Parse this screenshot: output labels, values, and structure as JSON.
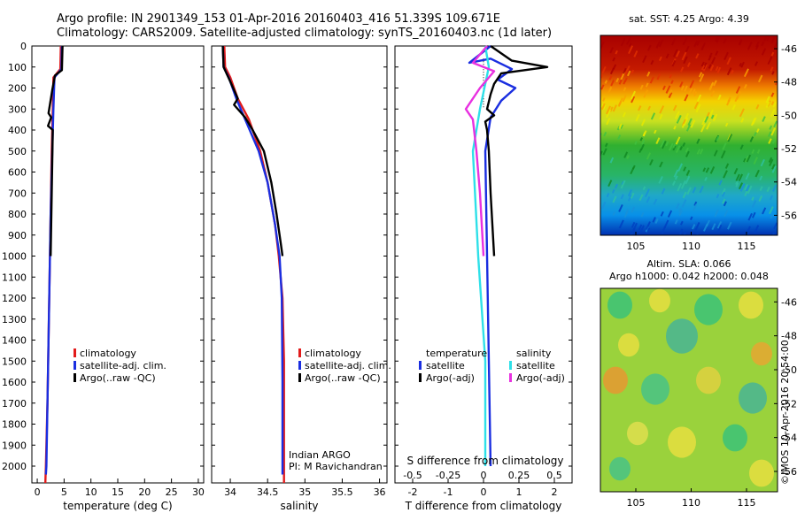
{
  "header": {
    "line1": "Argo profile: IN 2901349_153 01-Apr-2016 20160403_416 51.339S 109.671E",
    "line2": "Climatology: CARS2009. Satellite-adjusted climatology: synTS_20160403.nc (1d later)"
  },
  "credit": "©IMOS 10-Apr-2016 20:54:00",
  "colors": {
    "clim": "#e21b1b",
    "sat": "#1a2ee0",
    "argo": "#000000",
    "sal_sat": "#2ee0e8",
    "sal_argo": "#e830e0"
  },
  "chart_data": [
    {
      "type": "line",
      "id": "temperature",
      "xlabel": "temperature (deg C)",
      "ylabel": "",
      "xlim": [
        -1,
        31
      ],
      "ylim": [
        2080,
        0
      ],
      "xticks": [
        "0",
        "5",
        "10",
        "15",
        "20",
        "25",
        "30"
      ],
      "yticks": [
        "0",
        "100",
        "200",
        "300",
        "400",
        "500",
        "600",
        "700",
        "800",
        "900",
        "1000",
        "1100",
        "1200",
        "1300",
        "1400",
        "1500",
        "1600",
        "1700",
        "1800",
        "1900",
        "2000"
      ],
      "legend": [
        "climatology",
        "satellite-adj. clim.",
        "Argo(..raw -QC)"
      ],
      "series": [
        {
          "name": "climatology",
          "color_key": "clim",
          "x": [
            4.4,
            4.3,
            3.0,
            2.9,
            2.7,
            2.5,
            2.3,
            2.1,
            1.9,
            1.6,
            1.5
          ],
          "y": [
            0,
            110,
            150,
            300,
            500,
            800,
            1100,
            1400,
            1700,
            2000,
            2080
          ]
        },
        {
          "name": "satellite-adj. clim.",
          "color_key": "sat",
          "x": [
            4.6,
            4.5,
            3.2,
            3.0,
            2.8,
            2.5,
            2.3,
            2.1,
            1.9,
            1.7,
            1.6
          ],
          "y": [
            0,
            110,
            150,
            300,
            500,
            800,
            1100,
            1400,
            1700,
            2000,
            2040
          ]
        },
        {
          "name": "Argo(..raw -QC)",
          "color_key": "argo",
          "x": [
            4.7,
            4.6,
            3.3,
            2.8,
            2.1,
            2.6,
            2.0,
            2.9,
            2.7,
            2.5
          ],
          "y": [
            0,
            115,
            140,
            210,
            320,
            340,
            380,
            400,
            700,
            1000
          ]
        }
      ]
    },
    {
      "type": "line",
      "id": "salinity",
      "xlabel": "salinity",
      "ylabel": "",
      "xlim": [
        33.75,
        36.1
      ],
      "ylim": [
        2080,
        0
      ],
      "xticks": [
        "34",
        "34.5",
        "35",
        "35.5",
        "36"
      ],
      "legend": [
        "climatology",
        "satellite-adj. clim.",
        "Argo(..raw -QC)"
      ],
      "annotation": [
        "Indian ARGO",
        "PI: M Ravichandran"
      ],
      "series": [
        {
          "name": "climatology",
          "color_key": "clim",
          "x": [
            33.92,
            33.93,
            34.0,
            34.1,
            34.25,
            34.4,
            34.5,
            34.6,
            34.65,
            34.7,
            34.72,
            34.72,
            34.72
          ],
          "y": [
            0,
            100,
            150,
            250,
            350,
            500,
            650,
            850,
            1000,
            1200,
            1500,
            2000,
            2080
          ]
        },
        {
          "name": "satellite-adj. clim.",
          "color_key": "sat",
          "x": [
            33.9,
            33.91,
            33.98,
            34.08,
            34.2,
            34.38,
            34.5,
            34.6,
            34.66,
            34.69,
            34.7,
            34.7
          ],
          "y": [
            0,
            100,
            150,
            250,
            350,
            500,
            650,
            850,
            1000,
            1200,
            1600,
            2040
          ]
        },
        {
          "name": "Argo(..raw -QC)",
          "color_key": "argo",
          "x": [
            33.9,
            33.91,
            34.0,
            34.1,
            34.05,
            34.2,
            34.3,
            34.45,
            34.55,
            34.62,
            34.68,
            34.7
          ],
          "y": [
            0,
            100,
            170,
            250,
            280,
            340,
            400,
            500,
            650,
            800,
            950,
            1000
          ]
        }
      ]
    },
    {
      "type": "line",
      "id": "difference",
      "xlabel": "T difference from climatology",
      "top_xlabel": "S difference from climatology",
      "xlim": [
        -2.5,
        2.5
      ],
      "ylim": [
        2080,
        0
      ],
      "xticks": [
        "-2",
        "-1",
        "0",
        "1",
        "2"
      ],
      "top_xticks": [
        "-0.5",
        "-0.25",
        "0",
        "0.25",
        "0.5"
      ],
      "legend_titles": [
        "temperature",
        "salinity"
      ],
      "legend": [
        "satellite",
        "Argo(-adj)",
        "satellite",
        "Argo(-adj)"
      ],
      "series": [
        {
          "name": "temperature satellite",
          "color_key": "sat",
          "x": [
            0.2,
            -0.4,
            0.2,
            0.8,
            0.4,
            0.9,
            0.5,
            0.2,
            0.05,
            0.1,
            0.15,
            0.2
          ],
          "y": [
            0,
            80,
            60,
            110,
            160,
            200,
            260,
            340,
            500,
            1000,
            1500,
            2000
          ]
        },
        {
          "name": "temperature Argo(-adj)",
          "color_key": "argo",
          "x": [
            0.2,
            0.8,
            1.8,
            0.5,
            0.3,
            0.2,
            0.1,
            0.3,
            0.05,
            0.1,
            0.15,
            0.2,
            0.25,
            0.3
          ],
          "y": [
            0,
            70,
            100,
            130,
            180,
            230,
            300,
            330,
            360,
            400,
            500,
            700,
            850,
            1000
          ]
        },
        {
          "name": "salinity satellite",
          "color_key": "sal_sat",
          "x": [
            0.05,
            0.15,
            -0.1,
            -0.3,
            -0.15,
            0.05,
            0.05
          ],
          "y": [
            0,
            100,
            300,
            500,
            1000,
            1500,
            2000
          ]
        },
        {
          "name": "salinity Argo(-adj)",
          "color_key": "sal_argo",
          "x": [
            0.1,
            -0.3,
            0.3,
            -0.1,
            -0.5,
            -0.3,
            -0.2,
            -0.1,
            0.0
          ],
          "y": [
            0,
            80,
            120,
            200,
            300,
            350,
            500,
            700,
            1000
          ]
        }
      ]
    }
  ],
  "maps": [
    {
      "id": "sst",
      "title": "sat. SST: 4.25 Argo: 4.39",
      "yticks": [
        "-46",
        "-48",
        "-50",
        "-52",
        "-54",
        "-56"
      ],
      "xticks": [
        "105",
        "110",
        "115"
      ]
    },
    {
      "id": "sla",
      "title": "Altim. SLA: 0.066",
      "subtitle": "Argo h1000: 0.042 h2000: 0.048",
      "yticks": [
        "-46",
        "-48",
        "-50",
        "-52",
        "-54",
        "-56"
      ],
      "xticks": [
        "105",
        "110",
        "115"
      ]
    }
  ]
}
